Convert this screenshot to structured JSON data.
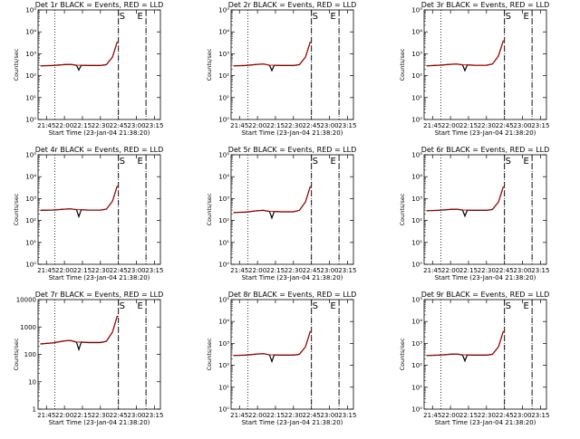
{
  "figure": {
    "background": "#ffffff",
    "events_color": "#000000",
    "lld_color": "#cc0000"
  },
  "chart_data": [
    {
      "type": "line",
      "title": "Det 1r BLACK = Events, RED = LLD",
      "xlabel": "Start Time (23-Jan-04 21:38:20)",
      "ylabel": "Counts/sec",
      "x_ticks": [
        "21:45",
        "22:00",
        "22:15",
        "22:30",
        "22:45",
        "23:00",
        "23:15"
      ],
      "y_ticks": [
        "10⁰",
        "10¹",
        "10²",
        "10³",
        "10⁴",
        "10⁵"
      ],
      "ylim_decades": [
        0,
        5
      ],
      "yscale": "log",
      "markers": [
        {
          "label": "S"
        },
        {
          "label": "E"
        }
      ],
      "series": [
        {
          "color": "#000000",
          "x": [
            "21:40",
            "21:50",
            "22:00",
            "22:05",
            "22:10",
            "22:12",
            "22:14",
            "22:20",
            "22:30",
            "22:35",
            "22:40",
            "22:44"
          ],
          "y": [
            280,
            290,
            320,
            330,
            300,
            180,
            300,
            290,
            290,
            320,
            700,
            3500
          ]
        },
        {
          "color": "#cc0000",
          "x": [
            "21:40",
            "21:50",
            "22:00",
            "22:05",
            "22:10",
            "22:12",
            "22:14",
            "22:20",
            "22:30",
            "22:35",
            "22:40",
            "22:44"
          ],
          "y": [
            285,
            295,
            325,
            335,
            305,
            300,
            305,
            295,
            295,
            325,
            720,
            3600
          ]
        }
      ]
    },
    {
      "type": "line",
      "title": "Det 2r BLACK = Events, RED = LLD",
      "xlabel": "Start Time (23-Jan-04 21:38:20)",
      "ylabel": "Counts/sec",
      "x_ticks": [
        "21:45",
        "22:00",
        "22:15",
        "22:30",
        "22:45",
        "23:00",
        "23:15"
      ],
      "y_ticks": [
        "10⁰",
        "10¹",
        "10²",
        "10³",
        "10⁴",
        "10⁵"
      ],
      "ylim_decades": [
        0,
        5
      ],
      "yscale": "log",
      "markers": [
        {
          "label": "S"
        },
        {
          "label": "E"
        }
      ],
      "series": [
        {
          "color": "#000000",
          "x": [
            "21:40",
            "21:50",
            "22:00",
            "22:05",
            "22:10",
            "22:12",
            "22:14",
            "22:20",
            "22:30",
            "22:35",
            "22:40",
            "22:44"
          ],
          "y": [
            280,
            290,
            330,
            340,
            300,
            170,
            300,
            290,
            290,
            320,
            700,
            3500
          ]
        },
        {
          "color": "#cc0000",
          "x": [
            "21:40",
            "21:50",
            "22:00",
            "22:05",
            "22:10",
            "22:12",
            "22:14",
            "22:20",
            "22:30",
            "22:35",
            "22:40",
            "22:44"
          ],
          "y": [
            285,
            295,
            335,
            345,
            305,
            300,
            305,
            295,
            295,
            325,
            720,
            3600
          ]
        }
      ]
    },
    {
      "type": "line",
      "title": "Det 3r BLACK = Events, RED = LLD",
      "xlabel": "Start Time (23-Jan-04 21:38:20)",
      "ylabel": "Counts/sec",
      "x_ticks": [
        "21:45",
        "22:00",
        "22:15",
        "22:30",
        "22:45",
        "23:00",
        "23:15"
      ],
      "y_ticks": [
        "10⁰",
        "10¹",
        "10²",
        "10³",
        "10⁴",
        "10⁵"
      ],
      "ylim_decades": [
        0,
        5
      ],
      "yscale": "log",
      "markers": [
        {
          "label": "S"
        },
        {
          "label": "E"
        }
      ],
      "series": [
        {
          "color": "#000000",
          "x": [
            "21:40",
            "21:50",
            "22:00",
            "22:05",
            "22:10",
            "22:12",
            "22:14",
            "22:20",
            "22:30",
            "22:35",
            "22:40",
            "22:44"
          ],
          "y": [
            280,
            300,
            330,
            340,
            310,
            170,
            310,
            300,
            300,
            340,
            800,
            4000
          ]
        },
        {
          "color": "#cc0000",
          "x": [
            "21:40",
            "21:50",
            "22:00",
            "22:05",
            "22:10",
            "22:12",
            "22:14",
            "22:20",
            "22:30",
            "22:35",
            "22:40",
            "22:44"
          ],
          "y": [
            285,
            305,
            335,
            345,
            315,
            310,
            315,
            305,
            305,
            345,
            820,
            4100
          ]
        }
      ]
    },
    {
      "type": "line",
      "title": "Det 4r BLACK = Events, RED = LLD",
      "xlabel": "Start Time (23-Jan-04 21:38:20)",
      "ylabel": "Counts/sec",
      "x_ticks": [
        "21:45",
        "22:00",
        "22:15",
        "22:30",
        "22:45",
        "23:00",
        "23:15"
      ],
      "y_ticks": [
        "10⁰",
        "10¹",
        "10²",
        "10³",
        "10⁴",
        "10⁵"
      ],
      "ylim_decades": [
        0,
        5
      ],
      "yscale": "log",
      "markers": [
        {
          "label": "S"
        },
        {
          "label": "E"
        }
      ],
      "series": [
        {
          "color": "#000000",
          "x": [
            "21:40",
            "21:50",
            "22:00",
            "22:05",
            "22:10",
            "22:12",
            "22:14",
            "22:20",
            "22:30",
            "22:35",
            "22:40",
            "22:44"
          ],
          "y": [
            290,
            300,
            330,
            340,
            310,
            150,
            310,
            300,
            300,
            330,
            750,
            3800
          ]
        },
        {
          "color": "#cc0000",
          "x": [
            "21:40",
            "21:50",
            "22:00",
            "22:05",
            "22:10",
            "22:12",
            "22:14",
            "22:20",
            "22:30",
            "22:35",
            "22:40",
            "22:44"
          ],
          "y": [
            295,
            305,
            335,
            345,
            315,
            310,
            315,
            305,
            305,
            335,
            770,
            3900
          ]
        }
      ]
    },
    {
      "type": "line",
      "title": "Det 5r BLACK = Events, RED = LLD",
      "xlabel": "Start Time (23-Jan-04 21:38:20)",
      "ylabel": "Counts/sec",
      "x_ticks": [
        "21:45",
        "22:00",
        "22:15",
        "22:30",
        "22:45",
        "23:00",
        "23:15"
      ],
      "y_ticks": [
        "10⁰",
        "10¹",
        "10²",
        "10³",
        "10⁴",
        "10⁵"
      ],
      "ylim_decades": [
        0,
        5
      ],
      "yscale": "log",
      "markers": [
        {
          "label": "S"
        },
        {
          "label": "E"
        }
      ],
      "series": [
        {
          "color": "#000000",
          "x": [
            "21:40",
            "21:50",
            "22:00",
            "22:05",
            "22:10",
            "22:12",
            "22:14",
            "22:20",
            "22:30",
            "22:35",
            "22:40",
            "22:44"
          ],
          "y": [
            230,
            240,
            280,
            290,
            260,
            130,
            260,
            250,
            250,
            290,
            700,
            3600
          ]
        },
        {
          "color": "#cc0000",
          "x": [
            "21:40",
            "21:50",
            "22:00",
            "22:05",
            "22:10",
            "22:12",
            "22:14",
            "22:20",
            "22:30",
            "22:35",
            "22:40",
            "22:44"
          ],
          "y": [
            235,
            245,
            285,
            295,
            265,
            260,
            265,
            255,
            255,
            295,
            720,
            3700
          ]
        }
      ]
    },
    {
      "type": "line",
      "title": "Det 6r BLACK = Events, RED = LLD",
      "xlabel": "Start Time (23-Jan-04 21:38:20)",
      "ylabel": "Counts/sec",
      "x_ticks": [
        "21:45",
        "22:00",
        "22:15",
        "22:30",
        "22:45",
        "23:00",
        "23:15"
      ],
      "y_ticks": [
        "10⁰",
        "10¹",
        "10²",
        "10³",
        "10⁴",
        "10⁵"
      ],
      "ylim_decades": [
        0,
        5
      ],
      "yscale": "log",
      "markers": [
        {
          "label": "S"
        },
        {
          "label": "E"
        }
      ],
      "series": [
        {
          "color": "#000000",
          "x": [
            "21:40",
            "21:50",
            "22:00",
            "22:05",
            "22:10",
            "22:12",
            "22:14",
            "22:20",
            "22:30",
            "22:35",
            "22:40",
            "22:44"
          ],
          "y": [
            280,
            290,
            320,
            330,
            300,
            160,
            300,
            290,
            290,
            320,
            700,
            3500
          ]
        },
        {
          "color": "#cc0000",
          "x": [
            "21:40",
            "21:50",
            "22:00",
            "22:05",
            "22:10",
            "22:12",
            "22:14",
            "22:20",
            "22:30",
            "22:35",
            "22:40",
            "22:44"
          ],
          "y": [
            285,
            295,
            325,
            335,
            305,
            300,
            305,
            295,
            295,
            325,
            720,
            3600
          ]
        }
      ]
    },
    {
      "type": "line",
      "title": "Det 7r BLACK = Events, RED = LLD",
      "xlabel": "Start Time (23-Jan-04 21:38:20)",
      "ylabel": "Counts/sec",
      "x_ticks": [
        "21:45",
        "22:00",
        "22:15",
        "22:30",
        "22:45",
        "23:00",
        "23:15"
      ],
      "y_ticks": [
        "1",
        "10",
        "100",
        "1000",
        "10000"
      ],
      "ylim_decades": [
        0,
        4
      ],
      "yscale": "log",
      "markers": [
        {
          "label": "S"
        },
        {
          "label": "E"
        }
      ],
      "series": [
        {
          "color": "#000000",
          "x": [
            "21:40",
            "21:50",
            "22:00",
            "22:05",
            "22:10",
            "22:12",
            "22:14",
            "22:20",
            "22:30",
            "22:35",
            "22:40",
            "22:44"
          ],
          "y": [
            240,
            260,
            310,
            320,
            280,
            150,
            280,
            270,
            270,
            300,
            650,
            2500
          ]
        },
        {
          "color": "#cc0000",
          "x": [
            "21:40",
            "21:50",
            "22:00",
            "22:05",
            "22:10",
            "22:12",
            "22:14",
            "22:20",
            "22:30",
            "22:35",
            "22:40",
            "22:44"
          ],
          "y": [
            245,
            265,
            315,
            325,
            285,
            280,
            285,
            275,
            275,
            305,
            670,
            2600
          ]
        }
      ]
    },
    {
      "type": "line",
      "title": "Det 8r BLACK = Events, RED = LLD",
      "xlabel": "Start Time (23-Jan-04 21:38:20)",
      "ylabel": "Counts/sec",
      "x_ticks": [
        "21:45",
        "22:00",
        "22:15",
        "22:30",
        "22:45",
        "23:00",
        "23:15"
      ],
      "y_ticks": [
        "10⁰",
        "10¹",
        "10²",
        "10³",
        "10⁴",
        "10⁵"
      ],
      "ylim_decades": [
        0,
        5
      ],
      "yscale": "log",
      "markers": [
        {
          "label": "S"
        },
        {
          "label": "E"
        }
      ],
      "series": [
        {
          "color": "#000000",
          "x": [
            "21:40",
            "21:50",
            "22:00",
            "22:05",
            "22:10",
            "22:12",
            "22:14",
            "22:20",
            "22:30",
            "22:35",
            "22:40",
            "22:44"
          ],
          "y": [
            280,
            290,
            330,
            340,
            300,
            150,
            300,
            290,
            290,
            320,
            700,
            3600
          ]
        },
        {
          "color": "#cc0000",
          "x": [
            "21:40",
            "21:50",
            "22:00",
            "22:05",
            "22:10",
            "22:12",
            "22:14",
            "22:20",
            "22:30",
            "22:35",
            "22:40",
            "22:44"
          ],
          "y": [
            285,
            295,
            335,
            345,
            305,
            300,
            305,
            295,
            295,
            325,
            720,
            3700
          ]
        }
      ]
    },
    {
      "type": "line",
      "title": "Det 9r BLACK = Events, RED = LLD",
      "xlabel": "Start Time (23-Jan-04 21:38:20)",
      "ylabel": "Counts/sec",
      "x_ticks": [
        "21:45",
        "22:00",
        "22:15",
        "22:30",
        "22:45",
        "23:00",
        "23:15"
      ],
      "y_ticks": [
        "10⁰",
        "10¹",
        "10²",
        "10³",
        "10⁴",
        "10⁵"
      ],
      "ylim_decades": [
        0,
        5
      ],
      "yscale": "log",
      "markers": [
        {
          "label": "S"
        },
        {
          "label": "E"
        }
      ],
      "series": [
        {
          "color": "#000000",
          "x": [
            "21:40",
            "21:50",
            "22:00",
            "22:05",
            "22:10",
            "22:12",
            "22:14",
            "22:20",
            "22:30",
            "22:35",
            "22:40",
            "22:44"
          ],
          "y": [
            280,
            290,
            320,
            330,
            300,
            160,
            300,
            290,
            290,
            320,
            700,
            3600
          ]
        },
        {
          "color": "#cc0000",
          "x": [
            "21:40",
            "21:50",
            "22:00",
            "22:05",
            "22:10",
            "22:12",
            "22:14",
            "22:20",
            "22:30",
            "22:35",
            "22:40",
            "22:44"
          ],
          "y": [
            285,
            295,
            325,
            335,
            305,
            300,
            305,
            295,
            295,
            325,
            720,
            3700
          ]
        }
      ]
    }
  ]
}
